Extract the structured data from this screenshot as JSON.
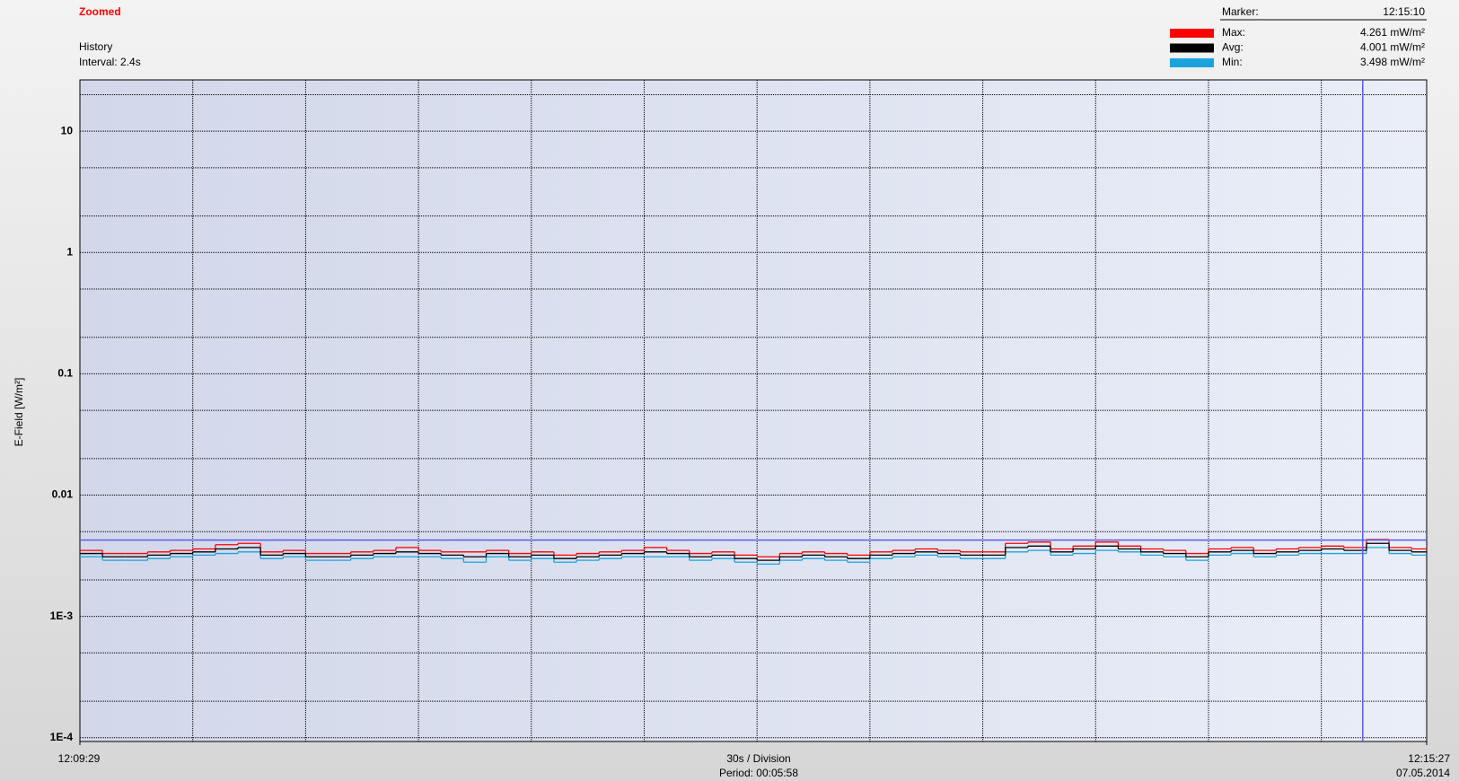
{
  "chart_data": {
    "type": "step",
    "title": "Zoomed",
    "mode": "History",
    "interval": "Interval: 2.4s",
    "ylabel": "E-Field [W/m²]",
    "division": "30s / Division",
    "period": "Period: 00:05:58",
    "date": "07.05.2014",
    "log_y": true,
    "grid": true,
    "ylim": [
      9.3e-05,
      26.5
    ],
    "yticks": [
      10,
      1,
      0.1,
      0.01,
      {
        "value": 0.001,
        "label": "1E-3"
      },
      {
        "value": 0.0001,
        "label": "1E-4"
      }
    ],
    "minor_yticks": [
      20,
      5,
      2,
      0.5,
      0.2,
      0.05,
      0.02,
      0.005,
      0.002,
      0.0005,
      0.0002
    ],
    "xlim": [
      0,
      358
    ],
    "xticks": [
      {
        "value": 0,
        "label": "12:09:29"
      },
      {
        "value": 358,
        "label": "12:15:27"
      }
    ],
    "xgrid": [
      30,
      60,
      90,
      120,
      150,
      180,
      210,
      240,
      270,
      300,
      330
    ],
    "marker": {
      "label": "Marker:",
      "time": "12:15:10",
      "x": 341
    },
    "x": [
      0,
      6,
      12,
      18,
      24,
      30,
      36,
      42,
      48,
      54,
      60,
      66,
      72,
      78,
      84,
      90,
      96,
      102,
      108,
      114,
      120,
      126,
      132,
      138,
      144,
      150,
      156,
      162,
      168,
      174,
      180,
      186,
      192,
      198,
      204,
      210,
      216,
      222,
      228,
      234,
      240,
      246,
      252,
      258,
      264,
      270,
      276,
      282,
      288,
      294,
      300,
      306,
      312,
      318,
      324,
      330,
      336,
      342,
      348,
      354
    ],
    "series": [
      {
        "name": "Max:",
        "color": "#ff0000",
        "marker_value": 0.004261,
        "marker_label": "4.261 mW/m²",
        "values": [
          0.0035,
          0.0033,
          0.0033,
          0.0034,
          0.0035,
          0.0036,
          0.0039,
          0.004,
          0.0034,
          0.0035,
          0.0033,
          0.0033,
          0.0034,
          0.0035,
          0.0037,
          0.0035,
          0.0034,
          0.0034,
          0.0035,
          0.0033,
          0.0034,
          0.0032,
          0.0033,
          0.0034,
          0.0035,
          0.0037,
          0.0035,
          0.0033,
          0.0034,
          0.0032,
          0.0031,
          0.0033,
          0.0034,
          0.0033,
          0.0032,
          0.0034,
          0.0035,
          0.0036,
          0.0035,
          0.0034,
          0.0034,
          0.004,
          0.0041,
          0.0036,
          0.0038,
          0.0041,
          0.0038,
          0.0036,
          0.0035,
          0.0033,
          0.0036,
          0.0037,
          0.0035,
          0.0036,
          0.0037,
          0.0038,
          0.0037,
          0.0043,
          0.0037,
          0.0036
        ]
      },
      {
        "name": "Avg:",
        "color": "#000000",
        "marker_value": 0.004001,
        "marker_label": "4.001 mW/m²",
        "values": [
          0.0033,
          0.0031,
          0.0031,
          0.0032,
          0.0033,
          0.0034,
          0.0036,
          0.0037,
          0.0032,
          0.0033,
          0.0031,
          0.0031,
          0.0032,
          0.0033,
          0.0034,
          0.0033,
          0.0032,
          0.0031,
          0.0033,
          0.0031,
          0.0032,
          0.003,
          0.0031,
          0.0032,
          0.0033,
          0.0034,
          0.0033,
          0.0031,
          0.0032,
          0.003,
          0.0029,
          0.0031,
          0.0032,
          0.0031,
          0.003,
          0.0032,
          0.0033,
          0.0034,
          0.0033,
          0.0032,
          0.0032,
          0.0037,
          0.0038,
          0.0034,
          0.0036,
          0.0038,
          0.0036,
          0.0034,
          0.0033,
          0.0031,
          0.0034,
          0.0035,
          0.0033,
          0.0034,
          0.0035,
          0.0036,
          0.0035,
          0.004,
          0.0035,
          0.0034
        ]
      },
      {
        "name": "Min:",
        "color": "#1aa3dd",
        "marker_value": 0.003498,
        "marker_label": "3.498 mW/m²",
        "values": [
          0.0031,
          0.0029,
          0.0029,
          0.003,
          0.0031,
          0.0032,
          0.0033,
          0.0034,
          0.003,
          0.0031,
          0.0029,
          0.0029,
          0.003,
          0.0031,
          0.0031,
          0.0031,
          0.003,
          0.0028,
          0.0031,
          0.0029,
          0.003,
          0.0028,
          0.0029,
          0.003,
          0.0031,
          0.0031,
          0.0031,
          0.0029,
          0.003,
          0.0028,
          0.0027,
          0.0029,
          0.003,
          0.0029,
          0.0028,
          0.003,
          0.0031,
          0.0032,
          0.0031,
          0.003,
          0.003,
          0.0034,
          0.0035,
          0.0032,
          0.0033,
          0.0035,
          0.0034,
          0.0032,
          0.0031,
          0.0029,
          0.0032,
          0.0033,
          0.0031,
          0.0032,
          0.0033,
          0.0033,
          0.0033,
          0.0037,
          0.0033,
          0.0032
        ]
      }
    ]
  }
}
